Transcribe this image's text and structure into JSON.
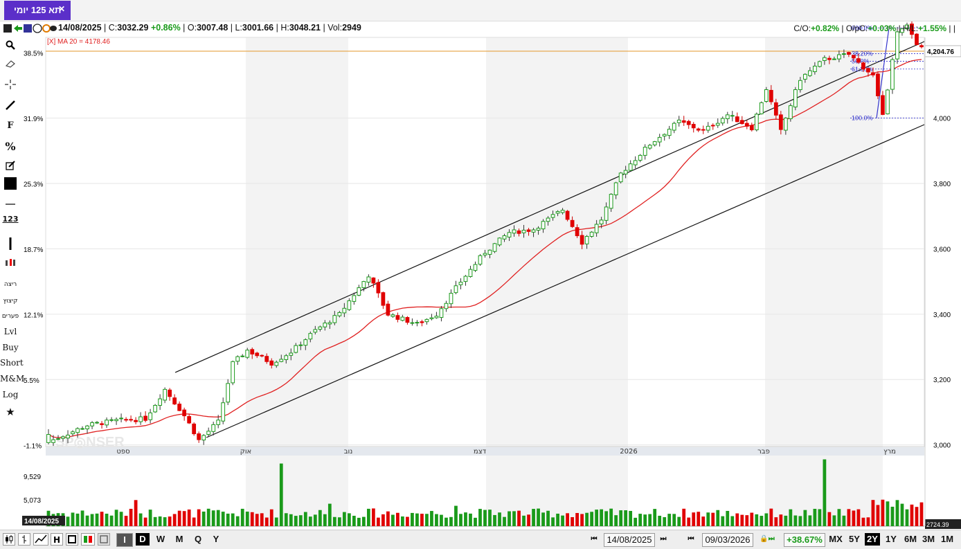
{
  "tab": {
    "title": "תא 125 יומי",
    "close": "✕"
  },
  "info": {
    "date": "14/08/2025",
    "c_label": "C:",
    "c_val": "3032.29",
    "c_chg": "+0.86%",
    "o_label": "O:",
    "o_val": "3007.48",
    "l_label": "L:",
    "l_val": "3001.66",
    "h_label": "H:",
    "h_val": "3048.21",
    "v_label": "Vol:",
    "v_val": "2949",
    "co_label": "C/O:",
    "co_val": "+0.82%",
    "opc_label": "O/pC:",
    "opc_val": "+0.03%",
    "hl_label": "H/L:",
    "hl_val": "+1.55%"
  },
  "indicator_label": "[X] MA 20 = 4178.46",
  "toolbar": {
    "rows": [
      "ריצה",
      "קיצוץ",
      "פערים"
    ],
    "lvl": "Lvl",
    "buy": "Buy",
    "short": "Short",
    "mm": "M&M",
    "log": "Log",
    "f": "F",
    "pct": "%",
    "num": "123"
  },
  "chart_data": {
    "type": "candlestick",
    "title": "",
    "indicator": "MA 20",
    "ma_last": 4178.46,
    "price_axis": {
      "ticks": [
        3000,
        3200,
        3400,
        3600,
        3800,
        4000
      ],
      "tick_labels": [
        "3,000",
        "3,200",
        "3,400",
        "3,600",
        "3,800",
        "4,000"
      ],
      "range": [
        2995,
        4230
      ]
    },
    "pct_axis": {
      "ticks": [
        -1.1,
        5.5,
        12.1,
        18.7,
        25.3,
        31.9,
        38.5
      ],
      "tick_labels": [
        "-1.1%",
        "5.5%",
        "12.1%",
        "18.7%",
        "25.3%",
        "31.9%",
        "38.5%"
      ]
    },
    "x_month_labels": [
      "ספט",
      "אוק",
      "נוב",
      "דצמ",
      "2026",
      "פבר",
      "מרץ"
    ],
    "last_price_label": "4,204.76",
    "last_price": 4204.76,
    "volume_axis": {
      "ticks": [
        5073,
        9529
      ],
      "tick_labels": [
        "5,073",
        "9,529"
      ],
      "max": 13000,
      "bottom_label": "2724.39"
    },
    "fibonacci": [
      {
        "level": "000.0%",
        "price": 4276
      },
      {
        "level": "38.20%",
        "price": 4197
      },
      {
        "level": "50.0%",
        "price": 4174
      },
      {
        "level": "61.80%",
        "price": 4150
      },
      {
        "level": "100.0%",
        "price": 4000
      }
    ],
    "ohlc": [],
    "volumes": []
  },
  "bottom": {
    "date_label": "14/08/2025",
    "range_from": "14/08/2025",
    "range_to": "09/03/2026",
    "range_change": "+38.67%",
    "periods": [
      "D",
      "W",
      "M",
      "Q",
      "Y"
    ],
    "spans": [
      "MX",
      "5Y",
      "2Y",
      "1Y",
      "6M",
      "3M",
      "1M"
    ],
    "selected_span": "2Y",
    "selected_period": "D"
  },
  "colors": {
    "up": "#1a9a1a",
    "down": "#e00000",
    "ma": "#e02020",
    "channel": "#111111",
    "fib": "#3333cc",
    "accent": "#5b2fc9"
  }
}
